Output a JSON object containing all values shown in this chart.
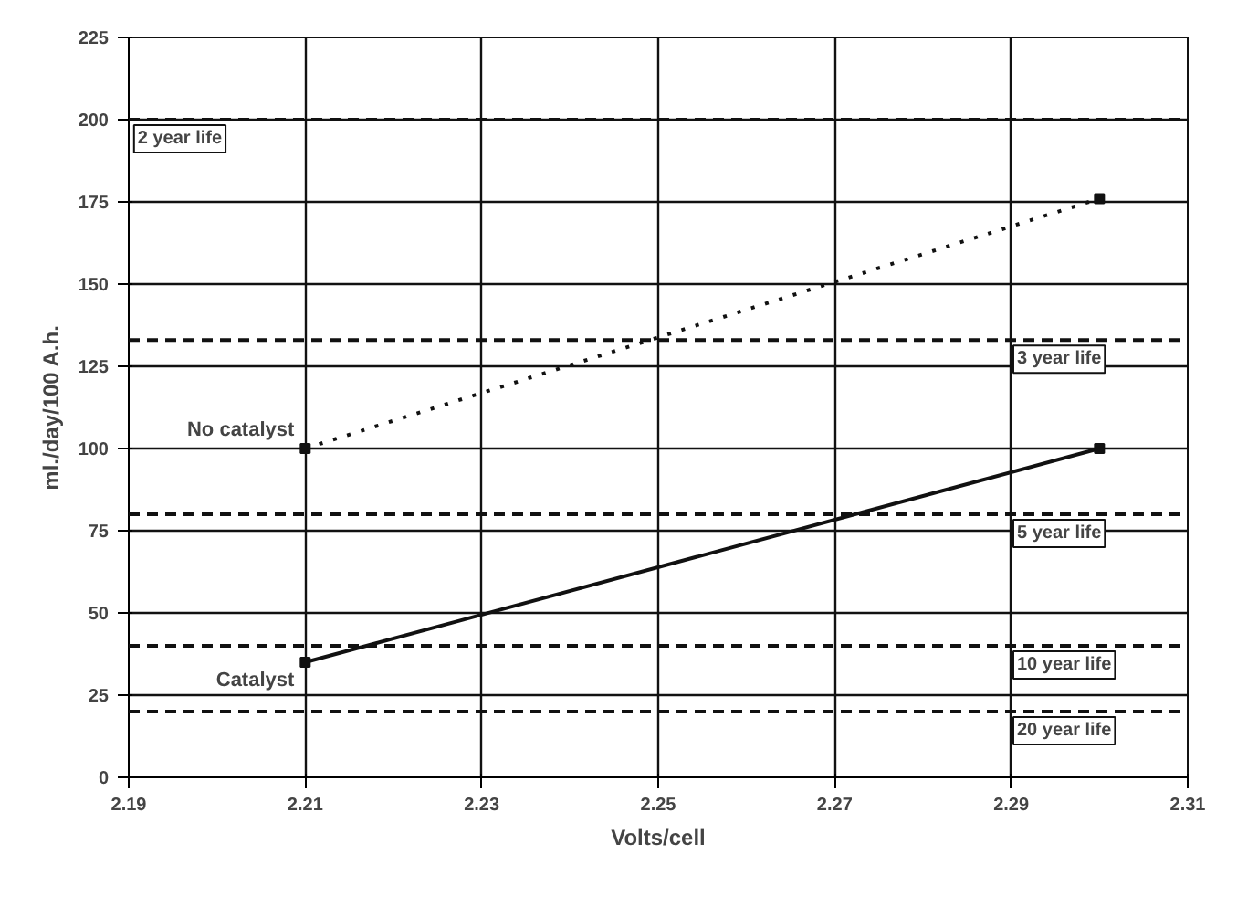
{
  "chart_data": {
    "type": "line",
    "xlabel": "Volts/cell",
    "ylabel": "ml./day/100 A.h.",
    "xlim": [
      2.19,
      2.31
    ],
    "xticks": [
      2.19,
      2.21,
      2.23,
      2.25,
      2.27,
      2.29,
      2.31
    ],
    "ylim": [
      0,
      225
    ],
    "yticks": [
      0,
      25,
      50,
      75,
      100,
      125,
      150,
      175,
      200,
      225
    ],
    "grid": true,
    "marker": "square",
    "x": [
      2.21,
      2.3
    ],
    "series": [
      {
        "name": "No catalyst",
        "color": "#111111",
        "values": [
          100,
          176
        ],
        "line_style": "dotted"
      },
      {
        "name": "Catalyst",
        "color": "#111111",
        "values": [
          35,
          100
        ],
        "line_style": "solid"
      }
    ],
    "ref_lines": [
      {
        "axis": "y",
        "value": 200,
        "label": "2 year life",
        "line_style": "dashed",
        "color": "#111111"
      },
      {
        "axis": "y",
        "value": 133,
        "label": "3 year life",
        "line_style": "dashed",
        "color": "#111111"
      },
      {
        "axis": "y",
        "value": 80,
        "label": "5 year life",
        "line_style": "dashed",
        "color": "#111111"
      },
      {
        "axis": "y",
        "value": 40,
        "label": "10 year life",
        "line_style": "dashed",
        "color": "#111111"
      },
      {
        "axis": "y",
        "value": 20,
        "label": "20 year life",
        "line_style": "dashed",
        "color": "#111111"
      }
    ]
  }
}
